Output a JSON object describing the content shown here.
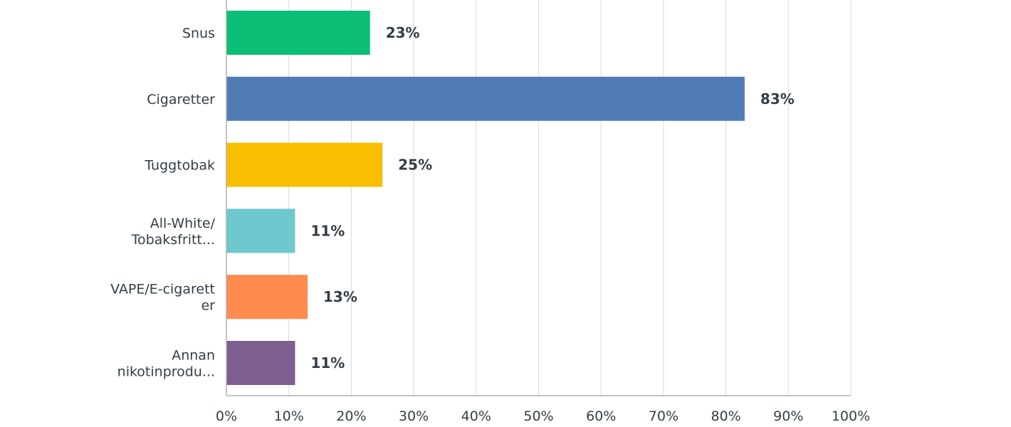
{
  "chart_data": {
    "type": "bar",
    "orientation": "horizontal",
    "categories": [
      [
        "Snus"
      ],
      [
        "Cigaretter"
      ],
      [
        "Tuggtobak"
      ],
      [
        "All-White/",
        "Tobaksfritt..."
      ],
      [
        "VAPE/E-cigarett",
        "er"
      ],
      [
        "Annan",
        "nikotinprodu..."
      ]
    ],
    "values": [
      23,
      83,
      25,
      11,
      13,
      11
    ],
    "value_labels": [
      "23%",
      "83%",
      "25%",
      "11%",
      "13%",
      "11%"
    ],
    "colors": [
      "#0abf75",
      "#507cb6",
      "#f9be00",
      "#6fc8ce",
      "#ff8b4f",
      "#7d5e90"
    ],
    "xlim": [
      0,
      100
    ],
    "ticks": [
      0,
      10,
      20,
      30,
      40,
      50,
      60,
      70,
      80,
      90,
      100
    ],
    "tick_labels": [
      "0%",
      "10%",
      "20%",
      "30%",
      "40%",
      "50%",
      "60%",
      "70%",
      "80%",
      "90%",
      "100%"
    ],
    "grid": true
  }
}
